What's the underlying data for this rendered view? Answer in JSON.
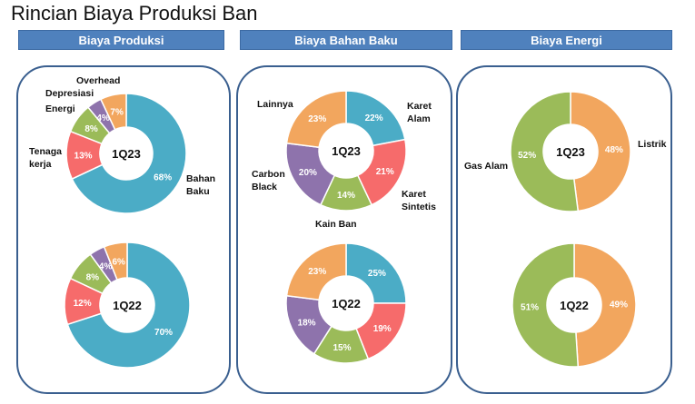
{
  "title": "Rincian Biaya Produksi Ban",
  "headers": [
    "Biaya Produksi",
    "Biaya Bahan Baku",
    "Biaya Energi"
  ],
  "colors": {
    "blue": "#4bacc6",
    "red": "#f66b6b",
    "green": "#9bbb59",
    "purple": "#8e73ac",
    "orange": "#f2a65e",
    "header": "#4f81bd",
    "panel_border": "#3a5f8f"
  },
  "chart_data": [
    {
      "type": "pie",
      "panel": "Biaya Produksi",
      "center_label": "1Q23",
      "slices": [
        {
          "label": "Bahan Baku",
          "value": 68,
          "color": "#4bacc6"
        },
        {
          "label": "Tenaga kerja",
          "value": 13,
          "color": "#f66b6b"
        },
        {
          "label": "Energi",
          "value": 8,
          "color": "#9bbb59"
        },
        {
          "label": "Depresiasi",
          "value": 4,
          "color": "#8e73ac"
        },
        {
          "label": "Overhead",
          "value": 7,
          "color": "#f2a65e"
        }
      ]
    },
    {
      "type": "pie",
      "panel": "Biaya Produksi",
      "center_label": "1Q22",
      "slices": [
        {
          "label": "Bahan Baku",
          "value": 70,
          "color": "#4bacc6"
        },
        {
          "label": "Tenaga kerja",
          "value": 12,
          "color": "#f66b6b"
        },
        {
          "label": "Energi",
          "value": 8,
          "color": "#9bbb59"
        },
        {
          "label": "Depresiasi",
          "value": 4,
          "color": "#8e73ac"
        },
        {
          "label": "Overhead",
          "value": 6,
          "color": "#f2a65e"
        }
      ]
    },
    {
      "type": "pie",
      "panel": "Biaya Bahan Baku",
      "center_label": "1Q23",
      "slices": [
        {
          "label": "Karet Alam",
          "value": 22,
          "color": "#4bacc6"
        },
        {
          "label": "Karet Sintetis",
          "value": 21,
          "color": "#f66b6b"
        },
        {
          "label": "Kain Ban",
          "value": 14,
          "color": "#9bbb59"
        },
        {
          "label": "Carbon Black",
          "value": 20,
          "color": "#8e73ac"
        },
        {
          "label": "Lainnya",
          "value": 23,
          "color": "#f2a65e"
        }
      ]
    },
    {
      "type": "pie",
      "panel": "Biaya Bahan Baku",
      "center_label": "1Q22",
      "slices": [
        {
          "label": "Karet Alam",
          "value": 25,
          "color": "#4bacc6"
        },
        {
          "label": "Karet Sintetis",
          "value": 19,
          "color": "#f66b6b"
        },
        {
          "label": "Kain Ban",
          "value": 15,
          "color": "#9bbb59"
        },
        {
          "label": "Carbon Black",
          "value": 18,
          "color": "#8e73ac"
        },
        {
          "label": "Lainnya",
          "value": 23,
          "color": "#f2a65e"
        }
      ]
    },
    {
      "type": "pie",
      "panel": "Biaya Energi",
      "center_label": "1Q23",
      "slices": [
        {
          "label": "Listrik",
          "value": 48,
          "color": "#f2a65e"
        },
        {
          "label": "Gas Alam",
          "value": 52,
          "color": "#9bbb59"
        }
      ]
    },
    {
      "type": "pie",
      "panel": "Biaya Energi",
      "center_label": "1Q22",
      "slices": [
        {
          "label": "Listrik",
          "value": 49,
          "color": "#f2a65e"
        },
        {
          "label": "Gas Alam",
          "value": 51,
          "color": "#9bbb59"
        }
      ]
    }
  ]
}
